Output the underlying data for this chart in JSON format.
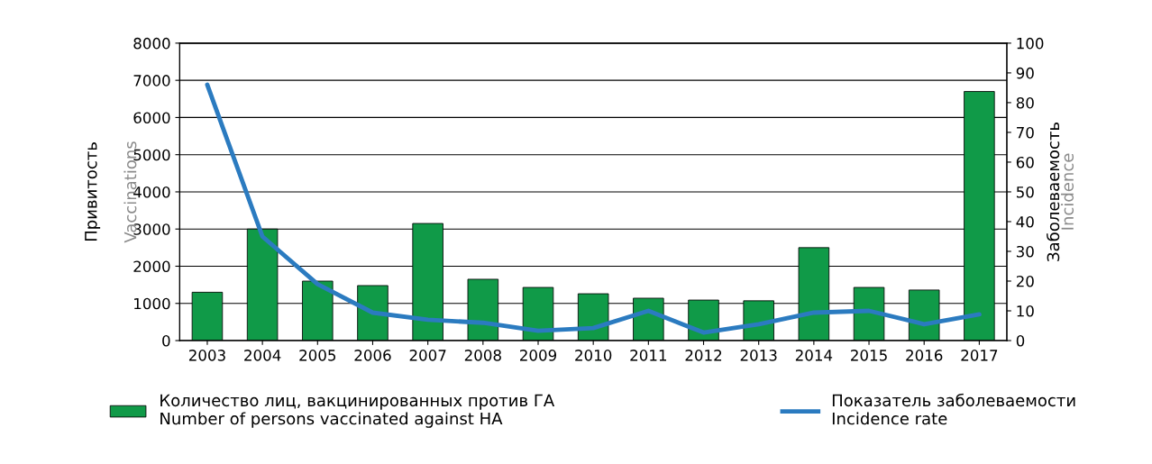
{
  "chart_data": {
    "type": "bar",
    "categories": [
      "2003",
      "2004",
      "2005",
      "2006",
      "2007",
      "2008",
      "2009",
      "2010",
      "2011",
      "2012",
      "2013",
      "2014",
      "2015",
      "2016",
      "2017"
    ],
    "ylabel": "Привитость\nVaccinations",
    "y2label": "Заболеваемость\nIncidence",
    "series": [
      {
        "name": "Количество лиц, вакцинированных против ГА\nNumber of persons vaccinated against HA",
        "color": "#109a48",
        "values": [
          1300,
          3000,
          1600,
          1480,
          3150,
          1650,
          1430,
          1260,
          1140,
          1090,
          1070,
          2500,
          1430,
          1360,
          6700
        ]
      },
      {
        "name": "Показатель заболеваемости\nIncidence rate",
        "type": "line",
        "axis": "y2",
        "color": "#2b7bc0",
        "values": [
          86,
          35,
          19,
          9.4,
          7,
          6,
          3.3,
          4.2,
          10,
          2.7,
          5.5,
          9.4,
          10,
          5.5,
          8.8
        ]
      }
    ],
    "ylim": [
      0,
      8000
    ],
    "yticks": [
      0,
      1000,
      2000,
      3000,
      4000,
      5000,
      6000,
      7000,
      8000
    ],
    "y2lim": [
      0,
      100
    ],
    "y2ticks": [
      0,
      10,
      20,
      30,
      40,
      50,
      60,
      70,
      80,
      90,
      100
    ],
    "grid": "y",
    "legend": "bottom",
    "marker": "none",
    "line_style": "solid"
  }
}
